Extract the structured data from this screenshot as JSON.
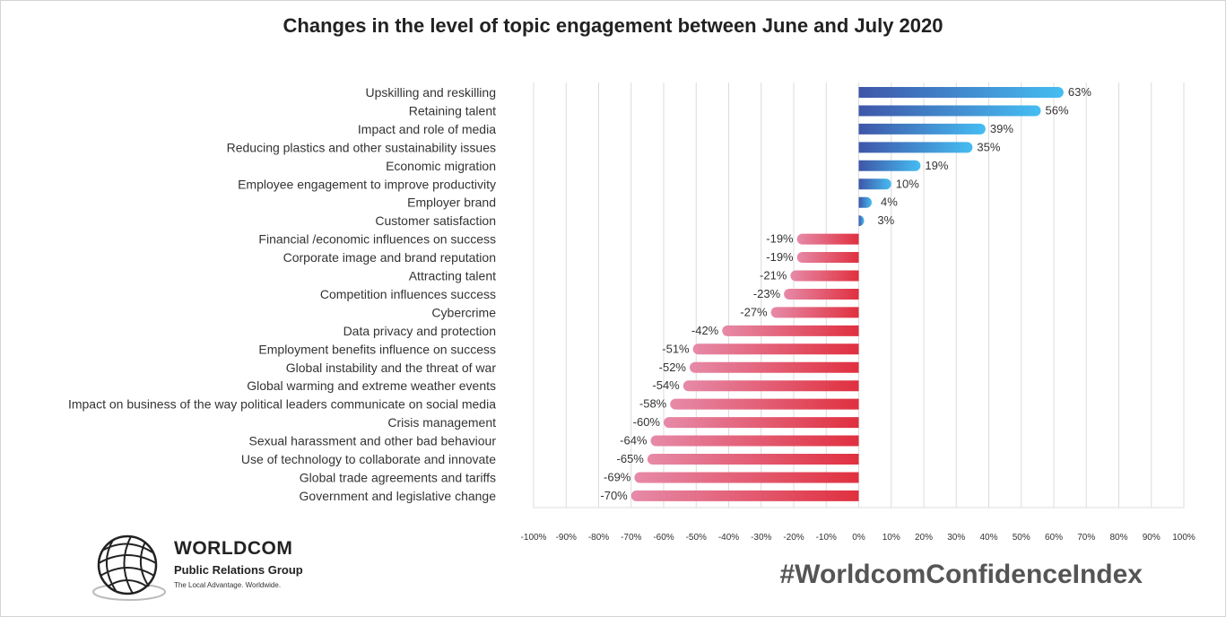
{
  "colors": {
    "positive_start": "#3f56a8",
    "positive_end": "#45bdf2",
    "negative_start": "#e68aa8",
    "negative_end": "#e0303f",
    "grid": "#dcdcdc"
  },
  "branding": {
    "logo_icon": "globe-icon",
    "name": "WORLDCOM",
    "subtitle": "Public Relations Group",
    "tagline": "The Local Advantage. Worldwide.",
    "hashtag": "#WorldcomConfidenceIndex"
  },
  "chart_data": {
    "type": "bar",
    "orientation": "horizontal",
    "title": "Changes in the level of topic engagement between June and July 2020",
    "xlabel": "",
    "ylabel": "",
    "xlim": [
      -100,
      100
    ],
    "ticks": [
      -100,
      -90,
      -80,
      -70,
      -60,
      -50,
      -40,
      -30,
      -20,
      -10,
      0,
      10,
      20,
      30,
      40,
      50,
      60,
      70,
      80,
      90,
      100
    ],
    "tick_labels": [
      "-100%",
      "-90%",
      "-80%",
      "-70%",
      "-60%",
      "-50%",
      "-40%",
      "-30%",
      "-20%",
      "-10%",
      "0%",
      "10%",
      "20%",
      "30%",
      "40%",
      "50%",
      "60%",
      "70%",
      "80%",
      "90%",
      "100%"
    ],
    "grid": true,
    "categories": [
      "Upskilling and reskilling",
      "Retaining talent",
      "Impact and role of media",
      "Reducing plastics and other sustainability issues",
      "Economic migration",
      "Employee engagement to improve productivity",
      "Employer brand",
      "Customer satisfaction",
      "Financial /economic influences on success",
      "Corporate image and brand reputation",
      "Attracting talent",
      "Competition influences success",
      "Cybercrime",
      "Data privacy and protection",
      "Employment benefits influence on success",
      "Global instability and the threat of war",
      "Global warming and extreme weather events",
      "Impact on business of the way political leaders communicate on social media",
      "Crisis management",
      "Sexual harassment and other bad behaviour",
      "Use of technology to collaborate and innovate",
      "Global trade agreements and tariffs",
      "Government and legislative change"
    ],
    "values": [
      63,
      56,
      39,
      35,
      19,
      10,
      4,
      3,
      -19,
      -19,
      -21,
      -23,
      -27,
      -42,
      -51,
      -52,
      -54,
      -58,
      -60,
      -64,
      -65,
      -69,
      -70
    ],
    "value_labels": [
      "63%",
      "56%",
      "39%",
      "35%",
      "19%",
      "10%",
      "4%",
      "3%",
      "-19%",
      "-19%",
      "-21%",
      "-23%",
      "-27%",
      "-42%",
      "-51%",
      "-52%",
      "-54%",
      "-58%",
      "-60%",
      "-64%",
      "-65%",
      "-69%",
      "-70%"
    ]
  }
}
